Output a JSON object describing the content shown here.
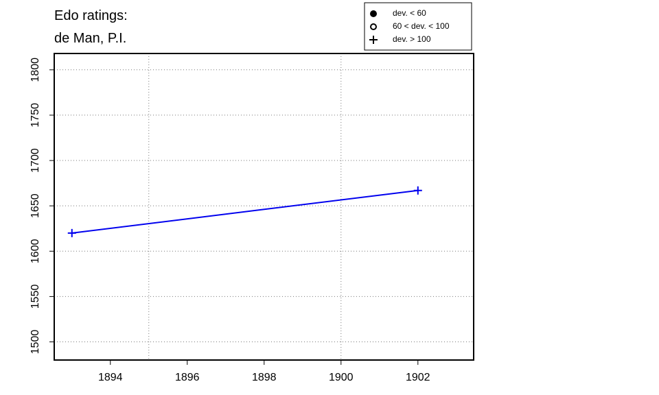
{
  "chart_data": {
    "type": "line",
    "title_lines": [
      "Edo ratings:",
      "de Man, P.I."
    ],
    "x": [
      1893,
      1902
    ],
    "series": [
      {
        "values": [
          1620,
          1667
        ],
        "color": "#0000ee",
        "marker": "plus"
      }
    ],
    "xlim": [
      1892.54,
      1903.45
    ],
    "ylim": [
      1480,
      1818
    ],
    "xticks": [
      1894,
      1896,
      1898,
      1900,
      1902
    ],
    "yticks": [
      1500,
      1550,
      1600,
      1650,
      1700,
      1750,
      1800
    ],
    "xgrid": [
      1895,
      1900
    ],
    "grid": true,
    "legend_position": "top-right",
    "legend": [
      {
        "label": "dev. < 60",
        "symbol": "filled-circle"
      },
      {
        "label": "60 < dev. < 100",
        "symbol": "open-circle"
      },
      {
        "label": "dev. > 100",
        "symbol": "plus"
      }
    ]
  }
}
